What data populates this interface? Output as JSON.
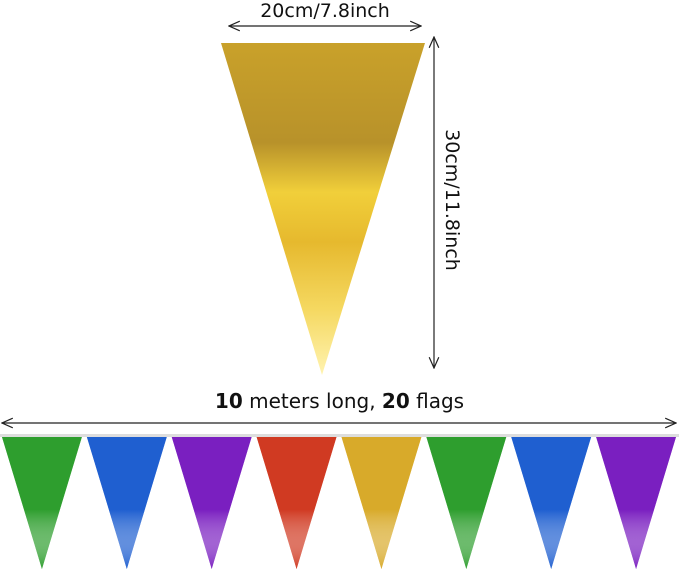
{
  "dimensions": {
    "width_label": "20cm/7.8inch",
    "height_label": "30cm/11.8inch"
  },
  "length": {
    "meters": "10",
    "meters_text": " meters long, ",
    "flags": "20",
    "flags_text": " flags"
  },
  "colors": {
    "gold": "#e0b52c",
    "flags": [
      "#2e9e2e",
      "#1f5fd0",
      "#7a1fc0",
      "#d03a22",
      "#d8aa2a",
      "#2e9e2e",
      "#1f5fd0",
      "#7a1fc0"
    ]
  }
}
